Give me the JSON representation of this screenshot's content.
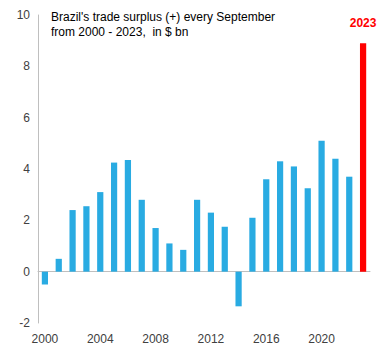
{
  "chart_data": {
    "type": "bar",
    "title": "Brazil's trade surplus (+) every September\nfrom 2000 - 2023,  in $ bn",
    "categories": [
      "2000",
      null,
      null,
      null,
      "2004",
      null,
      null,
      null,
      "2008",
      null,
      null,
      null,
      "2012",
      null,
      null,
      null,
      "2016",
      null,
      null,
      null,
      "2020",
      null,
      null,
      null
    ],
    "values": [
      -0.5,
      0.5,
      2.4,
      2.55,
      3.1,
      4.25,
      4.35,
      2.8,
      1.7,
      1.1,
      0.85,
      2.8,
      2.3,
      1.75,
      -1.35,
      2.1,
      3.6,
      4.3,
      4.1,
      3.25,
      5.1,
      4.4,
      3.7,
      8.9
    ],
    "colors": [
      "#29abe2",
      "#29abe2",
      "#29abe2",
      "#29abe2",
      "#29abe2",
      "#29abe2",
      "#29abe2",
      "#29abe2",
      "#29abe2",
      "#29abe2",
      "#29abe2",
      "#29abe2",
      "#29abe2",
      "#29abe2",
      "#29abe2",
      "#29abe2",
      "#29abe2",
      "#29abe2",
      "#29abe2",
      "#29abe2",
      "#29abe2",
      "#29abe2",
      "#29abe2",
      "#ff0000"
    ],
    "annotations": [
      {
        "text": "2023",
        "index": 23,
        "color": "#ff0000"
      }
    ],
    "ylim": [
      -2,
      10
    ],
    "yticks": [
      -2,
      0,
      2,
      4,
      6,
      8,
      10
    ],
    "grid": false
  }
}
